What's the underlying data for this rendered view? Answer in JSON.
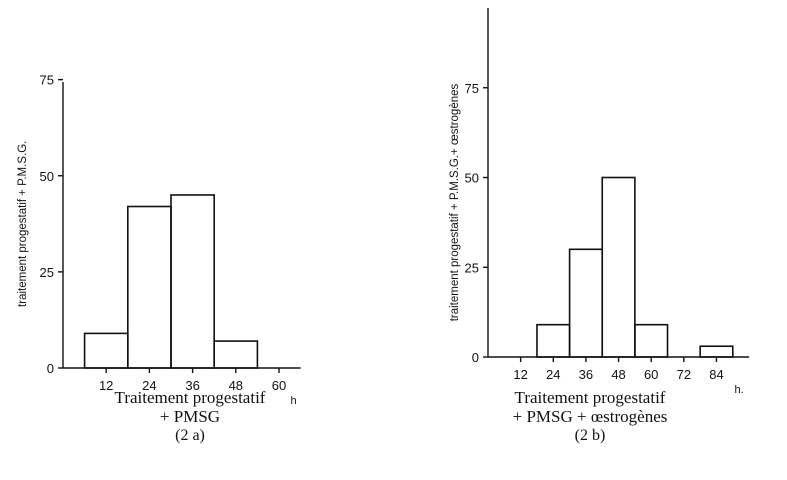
{
  "chart_data": [
    {
      "type": "bar",
      "ylabel": "traitement progestatif + P.M.S.G.",
      "xlabel_unit": "h",
      "x_ticks": [
        "12",
        "24",
        "36",
        "48",
        "60"
      ],
      "y_ticks": [
        "0",
        "25",
        "50",
        "75"
      ],
      "ylim": [
        0,
        75
      ],
      "xlim": [
        0,
        66
      ],
      "bins": [
        {
          "from": 6,
          "to": 18,
          "value": 9
        },
        {
          "from": 18,
          "to": 30,
          "value": 42
        },
        {
          "from": 30,
          "to": 42,
          "value": 45
        },
        {
          "from": 42,
          "to": 54,
          "value": 7
        }
      ],
      "caption": [
        "Traitement progestatif",
        "+ PMSG",
        "(2 a)"
      ]
    },
    {
      "type": "bar",
      "ylabel": "traitement progestatif + P.M.S.G.+ œstrogènes",
      "xlabel_unit": "h.",
      "x_ticks": [
        "12",
        "24",
        "36",
        "48",
        "60",
        "72",
        "84"
      ],
      "y_ticks": [
        "0",
        "25",
        "50",
        "75"
      ],
      "ylim": [
        0,
        75
      ],
      "xlim": [
        0,
        96
      ],
      "bins": [
        {
          "from": 18,
          "to": 30,
          "value": 9
        },
        {
          "from": 30,
          "to": 42,
          "value": 30
        },
        {
          "from": 42,
          "to": 54,
          "value": 50
        },
        {
          "from": 54,
          "to": 66,
          "value": 9
        },
        {
          "from": 78,
          "to": 90,
          "value": 3
        }
      ],
      "caption": [
        "Traitement progestatif",
        "+ PMSG + œstrogènes",
        "(2 b)"
      ]
    }
  ]
}
